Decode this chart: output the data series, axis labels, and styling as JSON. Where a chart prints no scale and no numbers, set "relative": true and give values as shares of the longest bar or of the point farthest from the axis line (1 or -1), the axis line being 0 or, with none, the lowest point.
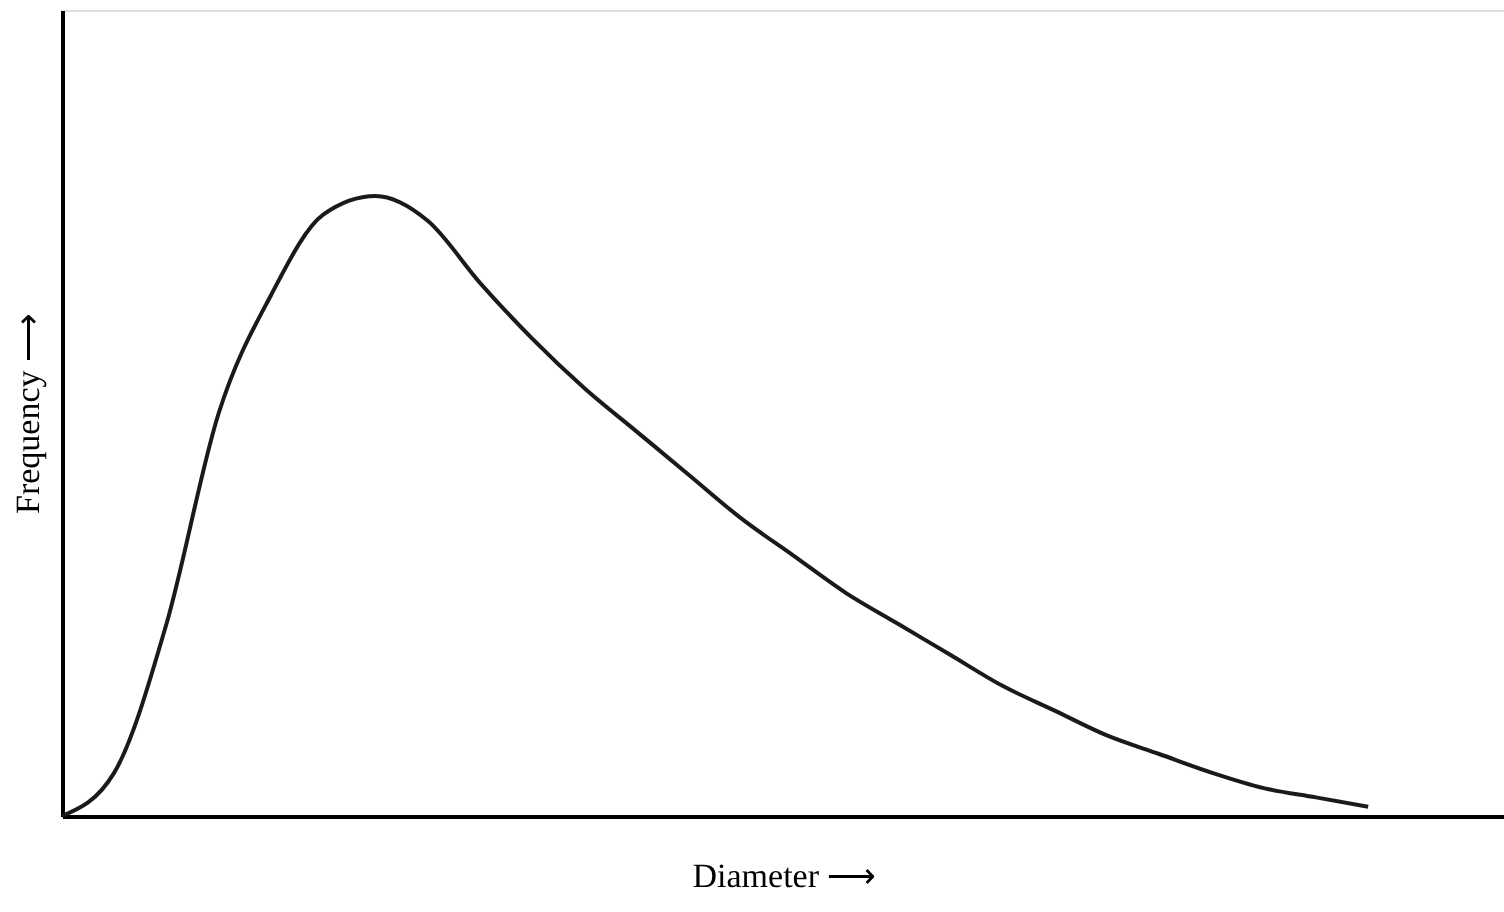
{
  "chart_data": {
    "type": "line",
    "relative": true,
    "xlabel": "Diameter ⟶",
    "ylabel": "Frequency ⟶",
    "grid": false,
    "marker": "none",
    "line_style": "solid",
    "categories": [
      null,
      null,
      null,
      null,
      null,
      null,
      null,
      null,
      null,
      null,
      null,
      null,
      null,
      null,
      null,
      null,
      null,
      null,
      null,
      null,
      null,
      null,
      null,
      null,
      null,
      null
    ],
    "series": [
      {
        "color": "#1a1a1a",
        "values": [
          0,
          0.07,
          0.31,
          0.65,
          0.84,
          0.97,
          1.0,
          0.96,
          0.86,
          0.77,
          0.69,
          0.62,
          0.55,
          0.48,
          0.42,
          0.36,
          0.31,
          0.26,
          0.21,
          0.17,
          0.13,
          0.1,
          0.07,
          0.045,
          0.03,
          0.015
        ]
      }
    ]
  }
}
